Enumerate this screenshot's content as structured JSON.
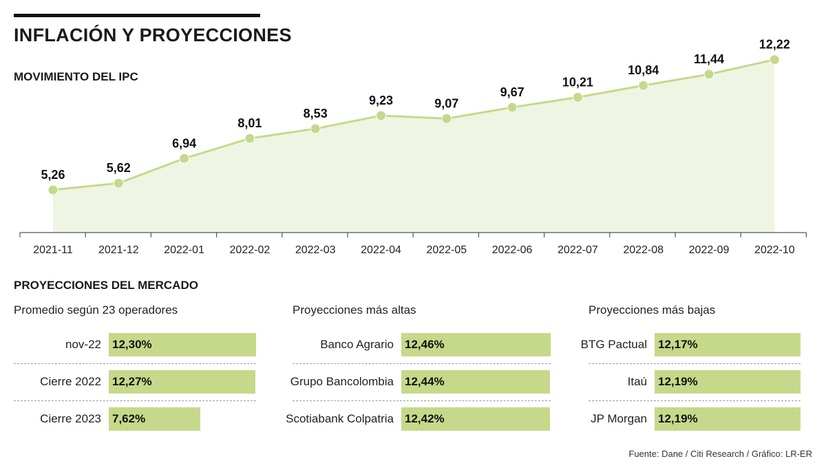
{
  "header": {
    "title": "INFLACIÓN Y PROYECCIONES",
    "subtitle": "MOVIMIENTO DEL IPC"
  },
  "colors": {
    "line": "#c4d98c",
    "area": "#eef5e2",
    "bar": "#c6d98a",
    "axis": "#555555"
  },
  "chart_data": [
    {
      "type": "area",
      "title": "MOVIMIENTO DEL IPC",
      "xlabel": "",
      "ylabel": "",
      "categories": [
        "2021-11",
        "2021-12",
        "2022-01",
        "2022-02",
        "2022-03",
        "2022-04",
        "2022-05",
        "2022-06",
        "2022-07",
        "2022-08",
        "2022-09",
        "2022-10"
      ],
      "values": [
        5.26,
        5.62,
        6.94,
        8.01,
        8.53,
        9.23,
        9.07,
        9.67,
        10.21,
        10.84,
        11.44,
        12.22
      ],
      "labels": [
        "5,26",
        "5,62",
        "6,94",
        "8,01",
        "8,53",
        "9,23",
        "9,07",
        "9,67",
        "10,21",
        "10,84",
        "11,44",
        "12,22"
      ],
      "grid": false,
      "legend": "none"
    },
    {
      "type": "bar",
      "title": "PROYECCIONES DEL MERCADO",
      "groups": [
        {
          "title": "Promedio según 23 operadores",
          "rows": [
            {
              "label": "nov-22",
              "value": 12.3,
              "text": "12,30%"
            },
            {
              "label": "Cierre 2022",
              "value": 12.27,
              "text": "12,27%"
            },
            {
              "label": "Cierre 2023",
              "value": 7.62,
              "text": "7,62%"
            }
          ]
        },
        {
          "title": "Proyecciones más altas",
          "rows": [
            {
              "label": "Banco Agrario",
              "value": 12.46,
              "text": "12,46%"
            },
            {
              "label": "Grupo Bancolombia",
              "value": 12.44,
              "text": "12,44%"
            },
            {
              "label": "Scotiabank Colpatria",
              "value": 12.42,
              "text": "12,42%"
            }
          ]
        },
        {
          "title": "Proyecciones más bajas",
          "rows": [
            {
              "label": "BTG Pactual",
              "value": 12.17,
              "text": "12,17%"
            },
            {
              "label": "Itaú",
              "value": 12.19,
              "text": "12,19%"
            },
            {
              "label": "JP Morgan",
              "value": 12.19,
              "text": "12,19%"
            }
          ]
        }
      ]
    }
  ],
  "footer": {
    "source": "Fuente: Dane / Citi Research / Gráfico: LR-ER"
  }
}
